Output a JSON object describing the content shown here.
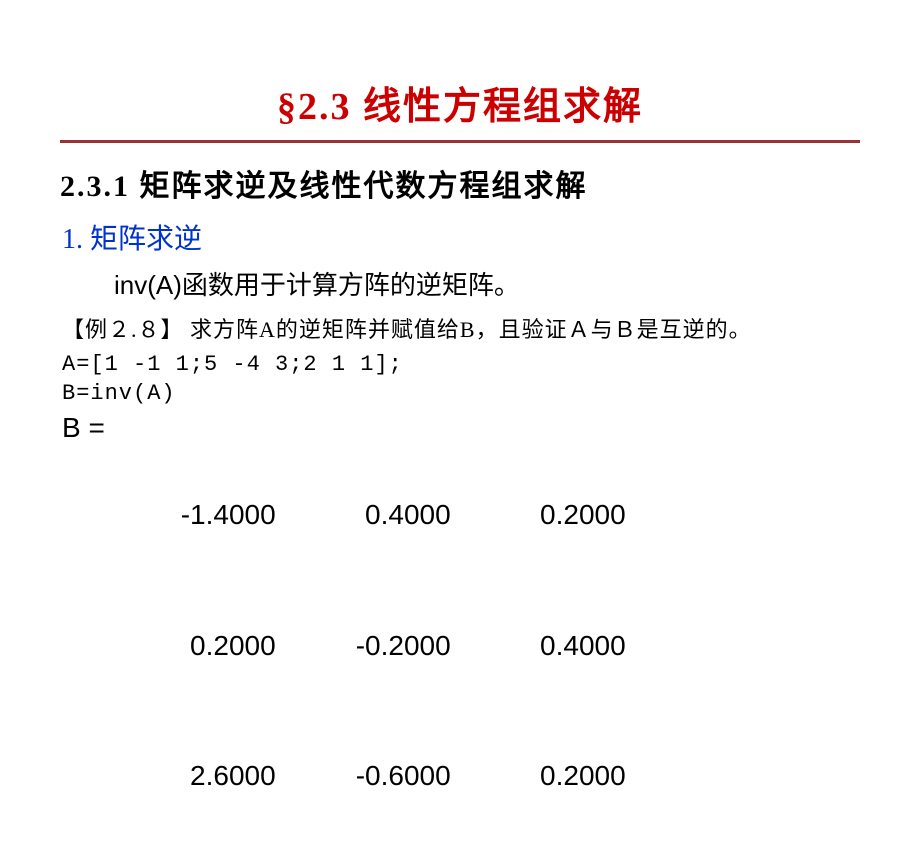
{
  "colors": {
    "title": "#cc0000",
    "divider": "#993333",
    "section": "#000000",
    "subtitle": "#0033cc",
    "body": "#000000",
    "code": "#000000"
  },
  "fonts": {
    "title_size": 38,
    "section_size": 30,
    "sub_size": 28,
    "body_size": 26,
    "example_size": 22,
    "code_size": 22,
    "result_size": 28
  },
  "title": "§2.3 线性方程组求解",
  "section": "2.3.1  矩阵求逆及线性代数方程组求解",
  "subtitle": "1.  矩阵求逆",
  "body_fn": "inv(A)",
  "body_rest": "函数用于计算方阵的逆矩阵。",
  "example_label": "【例２.８】 求方阵A的逆矩阵并赋值给B，且验证Ａ与Ｂ是互逆的。",
  "code1": "A=[1 -1 1;5 -4 3;2 1 1];",
  "code2": "B=inv(A)",
  "result_label": "B =",
  "matrix": {
    "rows": [
      [
        "-1.4000",
        "0.4000",
        "0.2000"
      ],
      [
        "0.2000",
        "-0.2000",
        "0.4000"
      ],
      [
        "2.6000",
        "-0.6000",
        "0.2000"
      ]
    ]
  }
}
